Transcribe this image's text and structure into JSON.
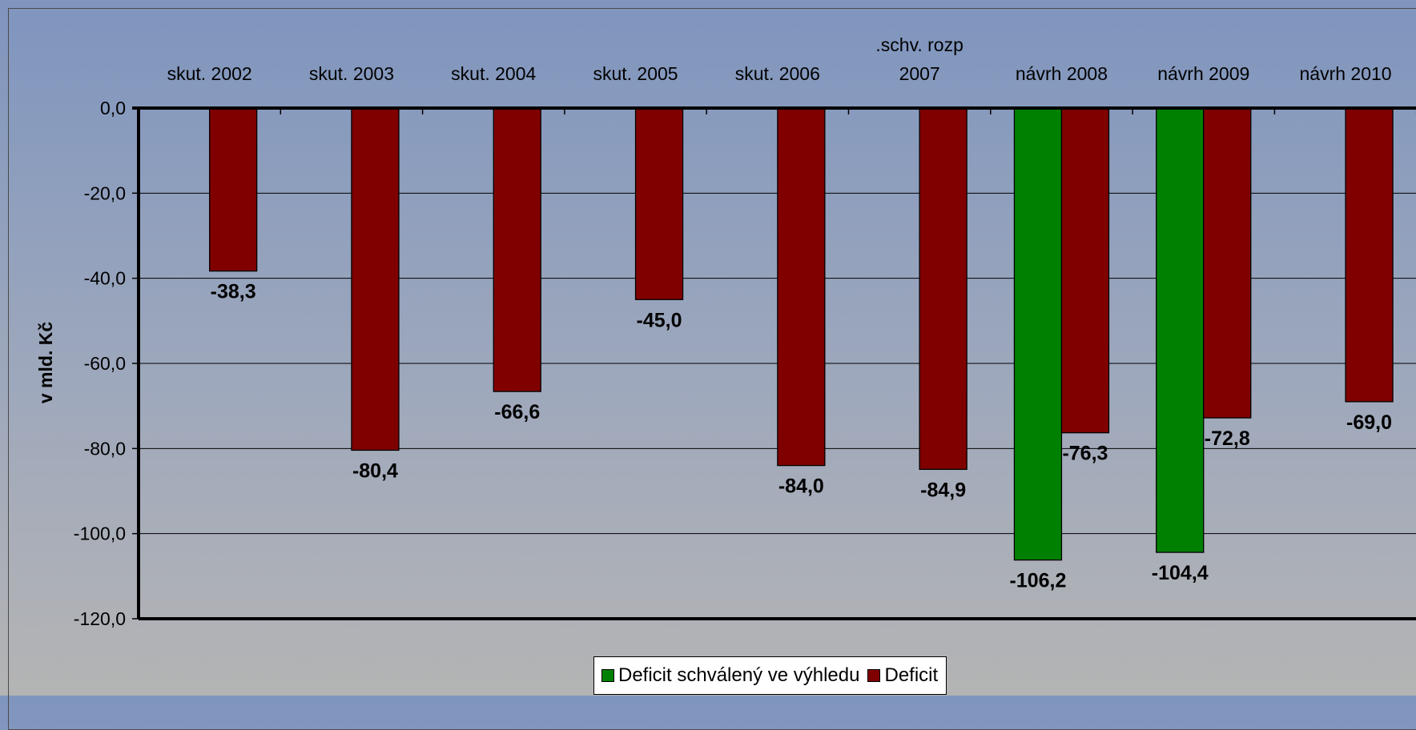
{
  "chart_data": {
    "type": "bar",
    "categories": [
      [
        "skut. 2002"
      ],
      [
        "skut. 2003"
      ],
      [
        "skut. 2004"
      ],
      [
        "skut. 2005"
      ],
      [
        "skut. 2006"
      ],
      [
        ".schv. rozp",
        "2007"
      ],
      [
        "návrh 2008"
      ],
      [
        "návrh 2009"
      ],
      [
        "návrh 2010"
      ]
    ],
    "series": [
      {
        "name": "Deficit schválený ve výhledu",
        "color": "#008000",
        "values": [
          null,
          null,
          null,
          null,
          null,
          null,
          -106.2,
          -104.4,
          null
        ],
        "labels": [
          "",
          "",
          "",
          "",
          "",
          "",
          "-106,2",
          "-104,4",
          ""
        ]
      },
      {
        "name": "Deficit",
        "color": "#800000",
        "values": [
          -38.3,
          -80.4,
          -66.6,
          -45.0,
          -84.0,
          -84.9,
          -76.3,
          -72.8,
          -69.0
        ],
        "labels": [
          "-38,3",
          "-80,4",
          "-66,6",
          "-45,0",
          "-84,0",
          "-84,9",
          "-76,3",
          "-72,8",
          "-69,0"
        ]
      }
    ],
    "yticks": [
      "0,0",
      "-20,0",
      "-40,0",
      "-60,0",
      "-80,0",
      "-100,0",
      "-120,0"
    ],
    "ytick_values": [
      0,
      -20,
      -40,
      -60,
      -80,
      -100,
      -120
    ],
    "ylim": [
      -120,
      0
    ],
    "ylabel": "v mld. Kč",
    "xlabel": "",
    "title": "",
    "x_axis_position": "top",
    "grid": true,
    "legend_position": "bottom"
  }
}
